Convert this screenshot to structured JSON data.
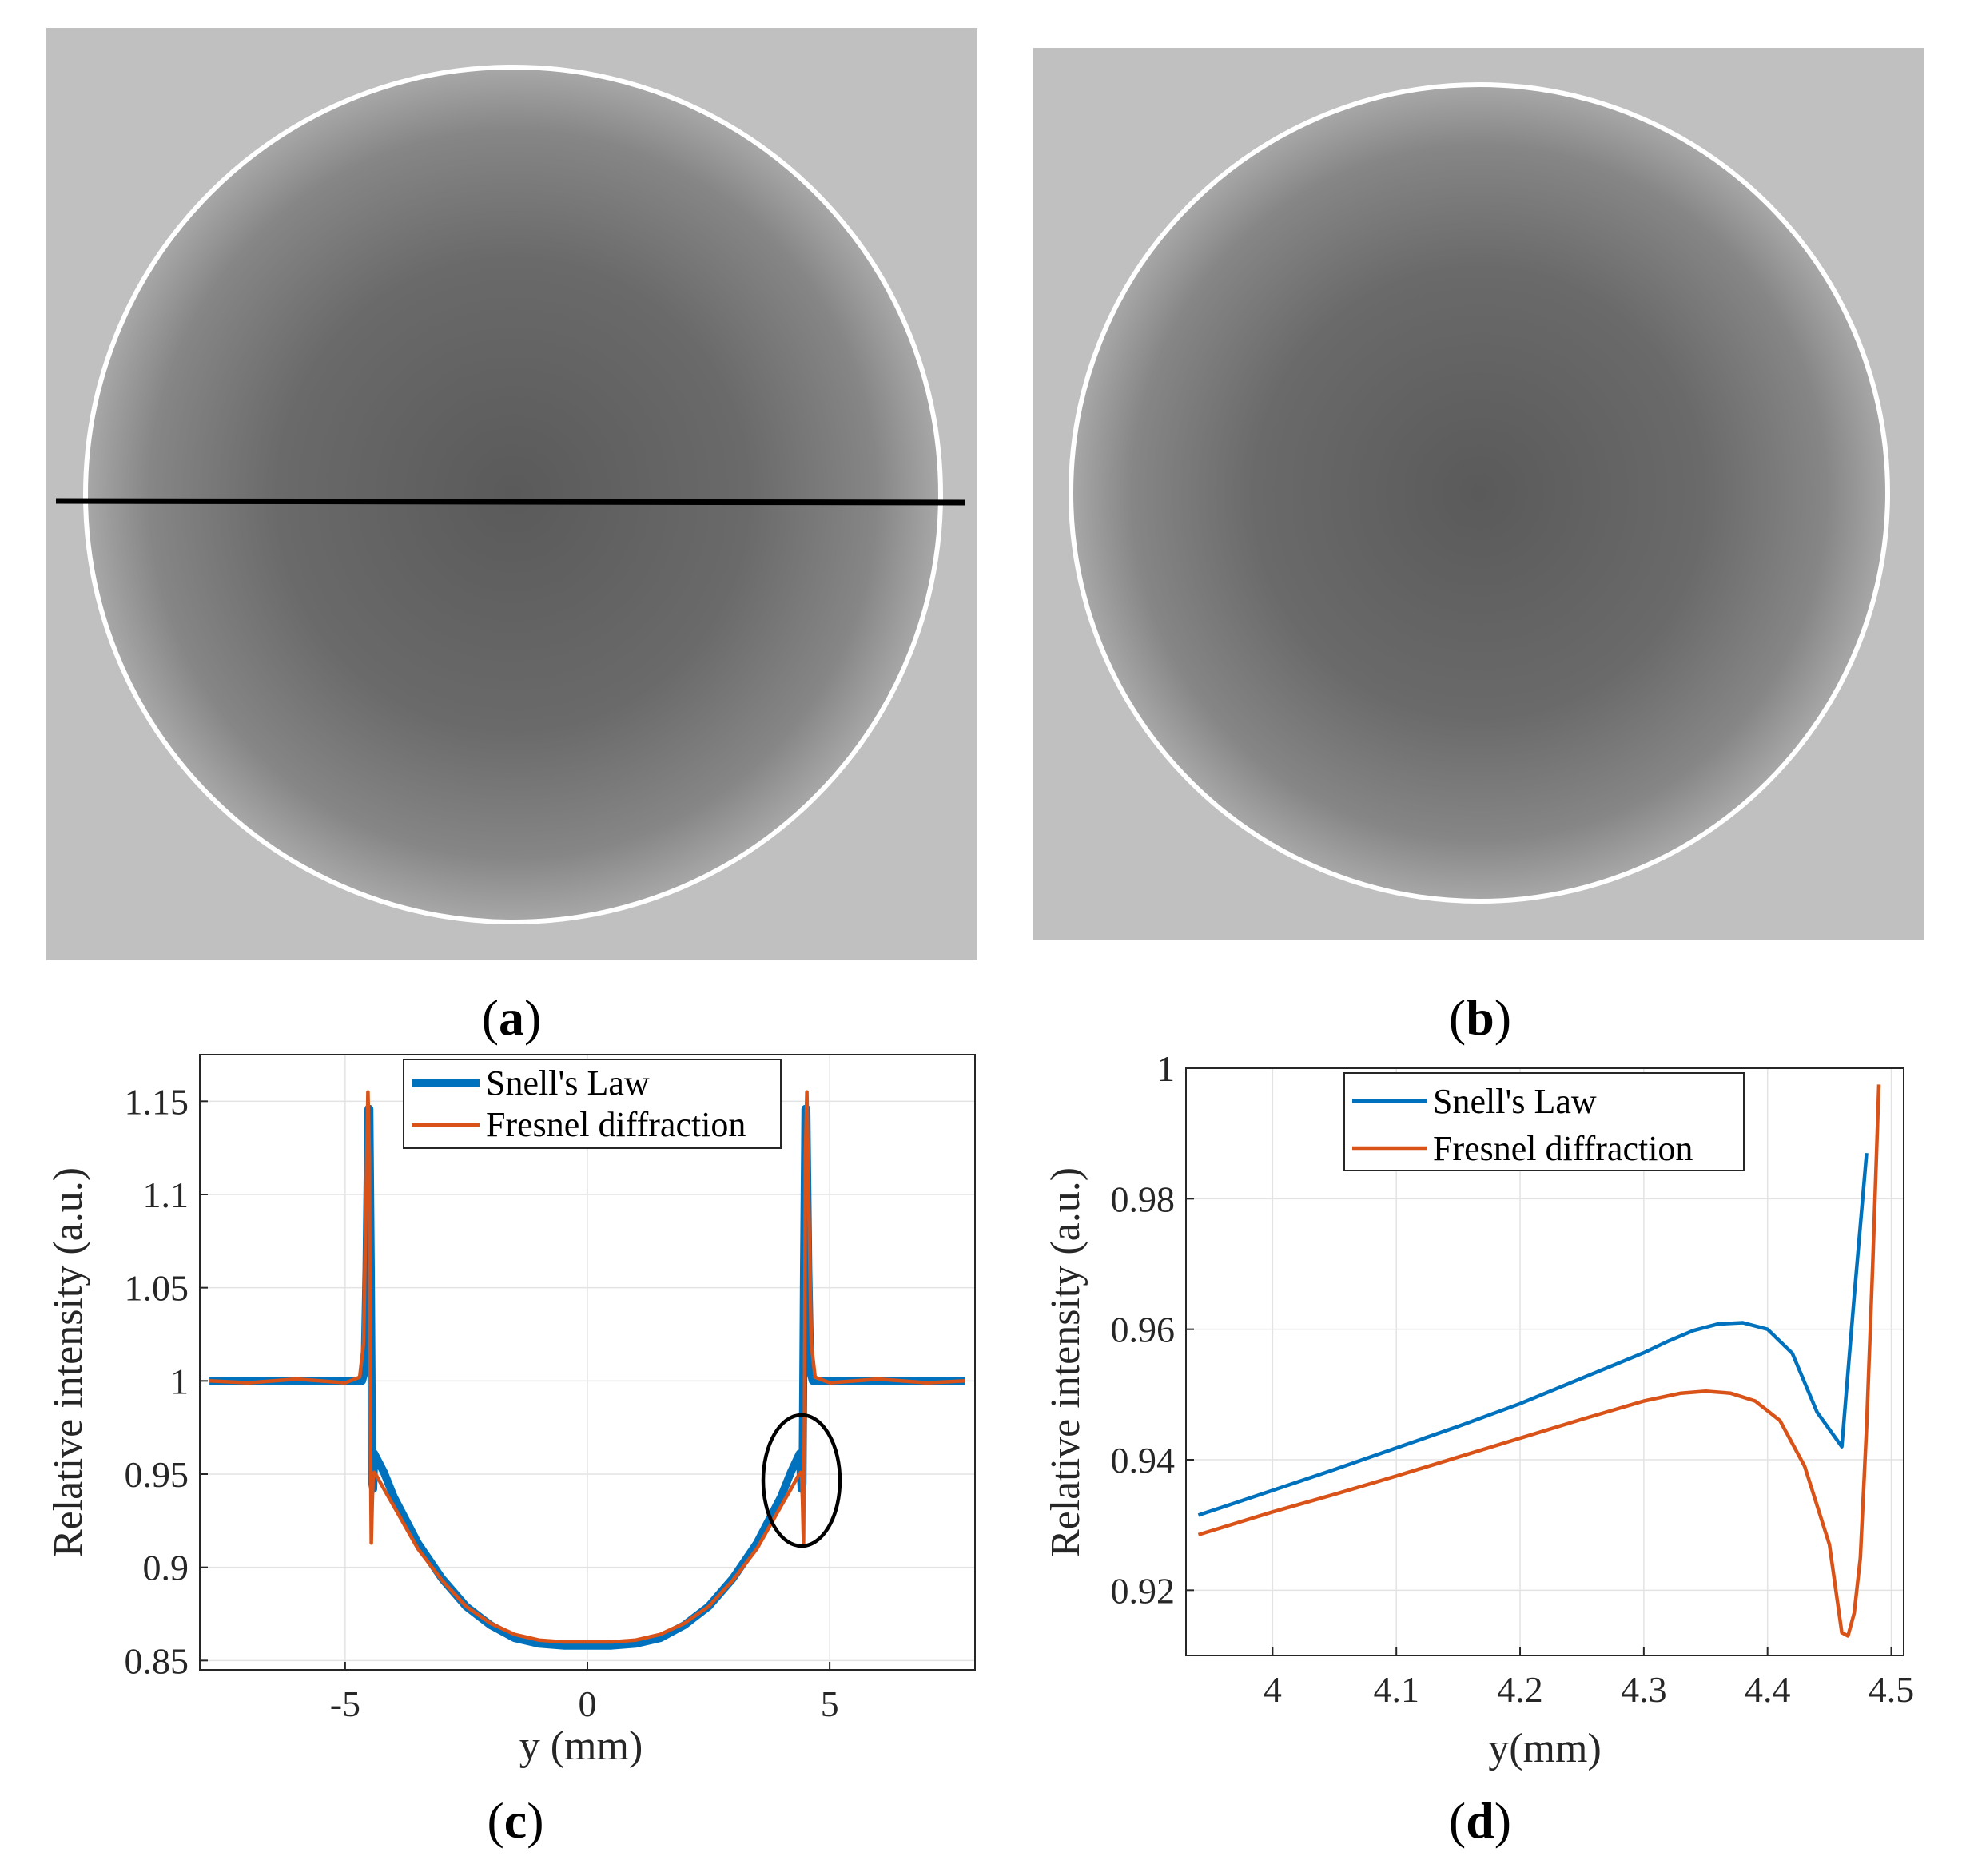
{
  "images": {
    "a": {
      "label_open": "(",
      "label_letter": "a",
      "label_close": ")"
    },
    "b": {
      "label_open": "(",
      "label_letter": "b",
      "label_close": ")"
    }
  },
  "colors": {
    "snell": "#0072BD",
    "fresnel": "#D95319",
    "image_bg": "#c0c0c0",
    "disk_center": "#5a5a5a",
    "disk_edge": "#a8a8a8"
  },
  "chart_data": [
    {
      "id": "c",
      "type": "line",
      "panel": {
        "open": "(",
        "letter": "c",
        "close": ")"
      },
      "xlabel": "y (mm)",
      "ylabel": "Relative intensity (a.u.)",
      "xlim": [
        -8,
        8
      ],
      "ylim": [
        0.845,
        1.175
      ],
      "xticks": [
        -5,
        0,
        5
      ],
      "xtick_labels": [
        "-5",
        "0",
        "5"
      ],
      "yticks": [
        0.85,
        0.9,
        0.95,
        1,
        1.05,
        1.1,
        1.15
      ],
      "ytick_labels": [
        "0.85",
        "0.9",
        "0.95",
        "1",
        "1.05",
        "1.1",
        "1.15"
      ],
      "grid": true,
      "legend": "top-center",
      "annotation": "ellipse around y = 4.5",
      "series": [
        {
          "name": "Snell's Law",
          "x": [
            -7.8,
            -4.65,
            -4.6,
            -4.56,
            -4.52,
            -4.5,
            -4.47,
            -4.44,
            -4.42,
            -4.4,
            -4.2,
            -4.0,
            -3.5,
            -3.0,
            -2.5,
            -2.0,
            -1.5,
            -1.0,
            -0.5,
            0,
            0.5,
            1.0,
            1.5,
            2.0,
            2.5,
            3.0,
            3.5,
            4.0,
            4.2,
            4.38,
            4.42,
            4.44,
            4.47,
            4.5,
            4.52,
            4.56,
            4.6,
            4.65,
            7.8
          ],
          "y": [
            1.0,
            1.0,
            1.005,
            1.06,
            1.146,
            1.146,
            1.06,
            0.945,
            0.942,
            0.961,
            0.951,
            0.938,
            0.913,
            0.894,
            0.879,
            0.869,
            0.862,
            0.859,
            0.858,
            0.858,
            0.858,
            0.859,
            0.862,
            0.869,
            0.879,
            0.894,
            0.913,
            0.938,
            0.951,
            0.961,
            0.942,
            0.945,
            1.06,
            1.146,
            1.146,
            1.06,
            1.005,
            1.0,
            1.0
          ]
        },
        {
          "name": "Fresnel diffraction",
          "x": [
            -7.8,
            -7.0,
            -6.0,
            -5.0,
            -4.7,
            -4.62,
            -4.56,
            -4.53,
            -4.5,
            -4.48,
            -4.46,
            -4.44,
            -4.42,
            -4.4,
            -4.35,
            -4.2,
            -4.0,
            -3.5,
            -3.0,
            -2.5,
            -2.0,
            -1.5,
            -1.0,
            -0.5,
            0,
            0.5,
            1.0,
            1.5,
            2.0,
            2.5,
            3.0,
            3.5,
            4.0,
            4.2,
            4.35,
            4.4,
            4.42,
            4.44,
            4.46,
            4.48,
            4.5,
            4.53,
            4.56,
            4.62,
            4.7,
            5.0,
            6.0,
            7.0,
            7.8
          ],
          "y": [
            1.0,
            0.999,
            1.001,
            0.999,
            1.002,
            1.02,
            1.11,
            1.155,
            1.12,
            0.98,
            0.913,
            0.935,
            0.95,
            0.951,
            0.949,
            0.942,
            0.933,
            0.91,
            0.893,
            0.879,
            0.87,
            0.864,
            0.861,
            0.86,
            0.86,
            0.86,
            0.861,
            0.864,
            0.87,
            0.879,
            0.893,
            0.91,
            0.933,
            0.942,
            0.949,
            0.951,
            0.95,
            0.935,
            0.913,
            0.98,
            1.12,
            1.155,
            1.11,
            1.02,
            1.002,
            0.999,
            1.001,
            0.999,
            1.0
          ]
        }
      ]
    },
    {
      "id": "d",
      "type": "line",
      "panel": {
        "open": "(",
        "letter": "d",
        "close": ")"
      },
      "xlabel": "y(mm)",
      "ylabel": "Relative intensity (a.u.)",
      "xlim": [
        3.93,
        4.51
      ],
      "ylim": [
        0.91,
        1.0
      ],
      "xticks": [
        4,
        4.1,
        4.2,
        4.3,
        4.4,
        4.5
      ],
      "xtick_labels": [
        "4",
        "4.1",
        "4.2",
        "4.3",
        "4.4",
        "4.5"
      ],
      "yticks": [
        0.92,
        0.94,
        0.96,
        0.98,
        1
      ],
      "ytick_labels": [
        "0.92",
        "0.94",
        "0.96",
        "0.98",
        "1"
      ],
      "grid": true,
      "legend": "top-center",
      "series": [
        {
          "name": "Snell's Law",
          "x": [
            3.94,
            4.0,
            4.05,
            4.1,
            4.15,
            4.2,
            4.25,
            4.3,
            4.32,
            4.34,
            4.36,
            4.38,
            4.4,
            4.42,
            4.44,
            4.46,
            4.47,
            4.48
          ],
          "y": [
            0.9315,
            0.9353,
            0.9385,
            0.9418,
            0.9451,
            0.9486,
            0.9525,
            0.9564,
            0.9582,
            0.9598,
            0.9608,
            0.961,
            0.96,
            0.9563,
            0.9473,
            0.942,
            0.965,
            0.987
          ]
        },
        {
          "name": "Fresnel diffraction",
          "x": [
            3.94,
            4.0,
            4.05,
            4.1,
            4.15,
            4.2,
            4.25,
            4.3,
            4.33,
            4.35,
            4.37,
            4.39,
            4.41,
            4.43,
            4.45,
            4.46,
            4.465,
            4.47,
            4.475,
            4.48,
            4.485,
            4.49
          ],
          "y": [
            0.9285,
            0.932,
            0.9347,
            0.9375,
            0.9404,
            0.9433,
            0.9462,
            0.949,
            0.9502,
            0.9505,
            0.9502,
            0.949,
            0.946,
            0.939,
            0.927,
            0.9135,
            0.913,
            0.9165,
            0.925,
            0.945,
            0.97,
            0.9975
          ]
        }
      ]
    }
  ]
}
